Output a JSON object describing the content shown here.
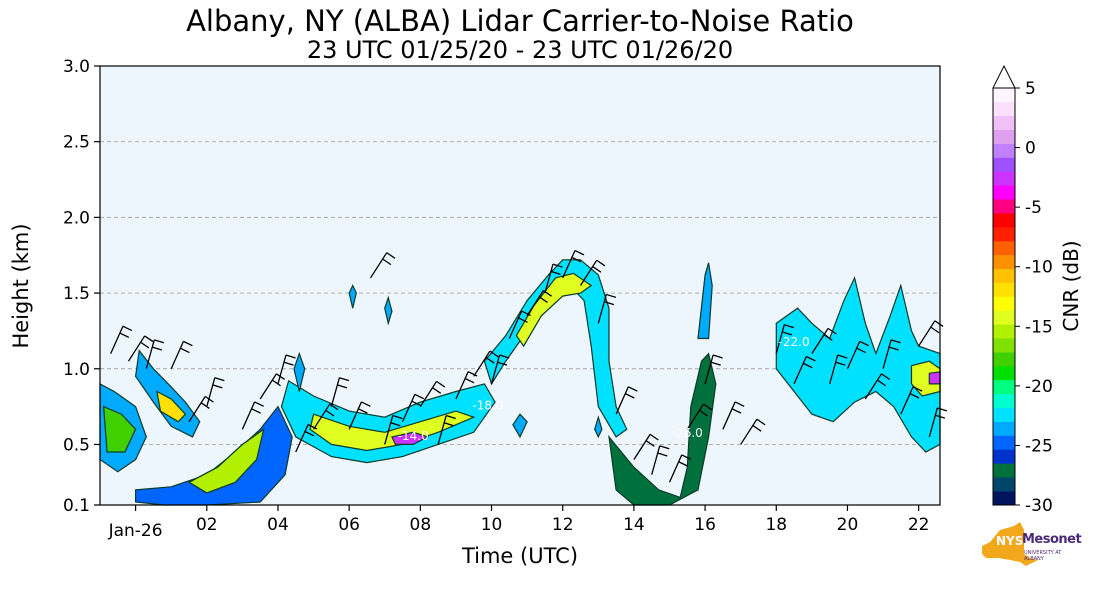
{
  "chart_data": {
    "type": "heatmap",
    "title": "Albany, NY (ALBA) Lidar Carrier-to-Noise Ratio",
    "subtitle": "23 UTC 01/25/20 - 23 UTC 01/26/20",
    "xlabel": "Time (UTC)",
    "ylabel": "Height (km)",
    "xlim": [
      23.0,
      46.6
    ],
    "ylim": [
      0.1,
      3.0
    ],
    "x_ticks": [
      {
        "value": 24,
        "label": "Jan-26"
      },
      {
        "value": 26,
        "label": "02"
      },
      {
        "value": 28,
        "label": "04"
      },
      {
        "value": 30,
        "label": "06"
      },
      {
        "value": 32,
        "label": "08"
      },
      {
        "value": 34,
        "label": "10"
      },
      {
        "value": 36,
        "label": "12"
      },
      {
        "value": 38,
        "label": "14"
      },
      {
        "value": 40,
        "label": "16"
      },
      {
        "value": 42,
        "label": "18"
      },
      {
        "value": 44,
        "label": "20"
      },
      {
        "value": 46,
        "label": "22"
      }
    ],
    "y_ticks": [
      {
        "value": 0.1,
        "label": "0.1"
      },
      {
        "value": 0.5,
        "label": "0.5"
      },
      {
        "value": 1.0,
        "label": "1.0"
      },
      {
        "value": 1.5,
        "label": "1.5"
      },
      {
        "value": 2.0,
        "label": "2.0"
      },
      {
        "value": 2.5,
        "label": "2.5"
      },
      {
        "value": 3.0,
        "label": "3.0"
      }
    ],
    "grid": "horizontal-dashed",
    "colorbar": {
      "label": "CNR (dB)",
      "min": -30,
      "max": 5,
      "extend": "max",
      "tick_values": [
        5,
        0,
        -5,
        -10,
        -15,
        -20,
        -25,
        -30
      ],
      "tick_labels": [
        "5",
        "0",
        "-5",
        "-10",
        "-15",
        "-20",
        "-25",
        "-30"
      ],
      "colors": [
        "#00155e",
        "#00456a",
        "#00703c",
        "#0033cc",
        "#0066ff",
        "#00aaff",
        "#00e0ff",
        "#00ffd0",
        "#00ff80",
        "#00e000",
        "#40d000",
        "#80e000",
        "#b0f000",
        "#e0ff20",
        "#ffff00",
        "#ffe000",
        "#ffc000",
        "#ff9000",
        "#ff6000",
        "#ff2000",
        "#ff0000",
        "#ff0080",
        "#ff00ff",
        "#cc33ff",
        "#a050ff",
        "#c080ff",
        "#e0a0f0",
        "#f0c0f8",
        "#fae0fc",
        "#fff4ff"
      ]
    },
    "contour_labels": [
      {
        "text": "-18.0",
        "x": 33.9,
        "y": 0.73
      },
      {
        "text": "-14.0",
        "x": 31.8,
        "y": 0.53
      },
      {
        "text": "-26.0",
        "x": 39.5,
        "y": 0.55
      },
      {
        "text": "-22.0",
        "x": 42.5,
        "y": 1.15
      }
    ],
    "series": [
      {
        "cnr_db": -24,
        "outline": [
          [
            23.0,
            0.9
          ],
          [
            23.4,
            0.85
          ],
          [
            24.0,
            0.75
          ],
          [
            24.3,
            0.55
          ],
          [
            24.0,
            0.4
          ],
          [
            23.5,
            0.32
          ],
          [
            23.0,
            0.4
          ]
        ]
      },
      {
        "cnr_db": -18,
        "outline": [
          [
            23.1,
            0.75
          ],
          [
            23.6,
            0.7
          ],
          [
            24.0,
            0.6
          ],
          [
            23.7,
            0.45
          ],
          [
            23.2,
            0.45
          ]
        ]
      },
      {
        "cnr_db": -24,
        "outline": [
          [
            24.1,
            1.12
          ],
          [
            24.5,
            1.0
          ],
          [
            25.0,
            0.88
          ],
          [
            25.4,
            0.78
          ],
          [
            25.8,
            0.65
          ],
          [
            25.6,
            0.55
          ],
          [
            25.0,
            0.62
          ],
          [
            24.5,
            0.78
          ],
          [
            24.0,
            0.95
          ]
        ]
      },
      {
        "cnr_db": -12,
        "outline": [
          [
            24.6,
            0.85
          ],
          [
            25.0,
            0.8
          ],
          [
            25.4,
            0.7
          ],
          [
            25.2,
            0.65
          ],
          [
            24.7,
            0.72
          ]
        ]
      },
      {
        "cnr_db": -25,
        "outline": [
          [
            24.0,
            0.2
          ],
          [
            25.0,
            0.22
          ],
          [
            26.0,
            0.3
          ],
          [
            26.8,
            0.45
          ],
          [
            27.5,
            0.6
          ],
          [
            28.0,
            0.75
          ],
          [
            28.4,
            0.55
          ],
          [
            28.2,
            0.3
          ],
          [
            27.5,
            0.12
          ],
          [
            26.0,
            0.1
          ],
          [
            24.8,
            0.1
          ],
          [
            24.0,
            0.12
          ]
        ]
      },
      {
        "cnr_db": -16,
        "outline": [
          [
            25.5,
            0.25
          ],
          [
            26.3,
            0.35
          ],
          [
            27.0,
            0.5
          ],
          [
            27.6,
            0.6
          ],
          [
            27.4,
            0.4
          ],
          [
            26.8,
            0.25
          ],
          [
            26.0,
            0.18
          ]
        ]
      },
      {
        "cnr_db": -23,
        "outline": [
          [
            28.3,
            0.92
          ],
          [
            29.0,
            0.82
          ],
          [
            30.0,
            0.72
          ],
          [
            31.0,
            0.68
          ],
          [
            32.0,
            0.78
          ],
          [
            33.0,
            0.85
          ],
          [
            33.8,
            0.9
          ],
          [
            34.1,
            0.78
          ],
          [
            33.5,
            0.58
          ],
          [
            32.5,
            0.5
          ],
          [
            31.5,
            0.42
          ],
          [
            30.5,
            0.38
          ],
          [
            29.5,
            0.42
          ],
          [
            28.5,
            0.55
          ],
          [
            28.1,
            0.75
          ]
        ]
      },
      {
        "cnr_db": -14,
        "outline": [
          [
            29.0,
            0.7
          ],
          [
            30.0,
            0.62
          ],
          [
            31.0,
            0.58
          ],
          [
            32.0,
            0.65
          ],
          [
            33.0,
            0.72
          ],
          [
            33.5,
            0.68
          ],
          [
            32.5,
            0.58
          ],
          [
            31.5,
            0.5
          ],
          [
            30.5,
            0.46
          ],
          [
            29.5,
            0.5
          ],
          [
            28.9,
            0.6
          ]
        ]
      },
      {
        "cnr_db": -3,
        "outline": [
          [
            31.2,
            0.55
          ],
          [
            31.8,
            0.58
          ],
          [
            32.2,
            0.55
          ],
          [
            31.8,
            0.5
          ],
          [
            31.3,
            0.5
          ]
        ]
      },
      {
        "cnr_db": -22,
        "outline": [
          [
            33.8,
            1.05
          ],
          [
            34.4,
            1.22
          ],
          [
            35.0,
            1.45
          ],
          [
            35.6,
            1.62
          ],
          [
            36.0,
            1.72
          ],
          [
            36.5,
            1.72
          ],
          [
            37.0,
            1.62
          ],
          [
            37.3,
            1.4
          ],
          [
            37.3,
            1.05
          ],
          [
            37.5,
            0.75
          ],
          [
            37.8,
            0.6
          ],
          [
            37.5,
            0.55
          ],
          [
            37.0,
            0.75
          ],
          [
            36.8,
            1.15
          ],
          [
            36.6,
            1.45
          ],
          [
            36.2,
            1.55
          ],
          [
            35.7,
            1.48
          ],
          [
            35.0,
            1.25
          ],
          [
            34.4,
            1.05
          ],
          [
            34.0,
            0.9
          ]
        ]
      },
      {
        "cnr_db": -14,
        "outline": [
          [
            34.7,
            1.22
          ],
          [
            35.2,
            1.42
          ],
          [
            35.8,
            1.6
          ],
          [
            36.3,
            1.63
          ],
          [
            36.8,
            1.55
          ],
          [
            36.5,
            1.5
          ],
          [
            36.0,
            1.48
          ],
          [
            35.4,
            1.35
          ],
          [
            34.9,
            1.15
          ]
        ]
      },
      {
        "cnr_db": -27,
        "outline": [
          [
            37.3,
            0.55
          ],
          [
            38.0,
            0.35
          ],
          [
            38.7,
            0.2
          ],
          [
            39.3,
            0.15
          ],
          [
            39.5,
            0.35
          ],
          [
            39.6,
            0.75
          ],
          [
            39.9,
            1.05
          ],
          [
            40.1,
            1.1
          ],
          [
            40.3,
            0.9
          ],
          [
            40.1,
            0.55
          ],
          [
            39.8,
            0.2
          ],
          [
            39.0,
            0.1
          ],
          [
            38.0,
            0.1
          ],
          [
            37.5,
            0.2
          ]
        ]
      },
      {
        "cnr_db": -24,
        "outline": [
          [
            39.8,
            1.2
          ],
          [
            40.0,
            1.62
          ],
          [
            40.1,
            1.7
          ],
          [
            40.2,
            1.55
          ],
          [
            40.1,
            1.2
          ]
        ]
      },
      {
        "cnr_db": -22,
        "outline": [
          [
            42.0,
            1.3
          ],
          [
            42.6,
            1.4
          ],
          [
            43.0,
            1.3
          ],
          [
            43.5,
            1.2
          ],
          [
            43.9,
            1.45
          ],
          [
            44.2,
            1.6
          ],
          [
            44.5,
            1.3
          ],
          [
            44.8,
            1.1
          ],
          [
            45.2,
            1.35
          ],
          [
            45.5,
            1.55
          ],
          [
            45.8,
            1.25
          ],
          [
            46.0,
            1.15
          ],
          [
            46.6,
            1.1
          ],
          [
            46.6,
            0.5
          ],
          [
            46.2,
            0.45
          ],
          [
            45.8,
            0.55
          ],
          [
            45.3,
            0.75
          ],
          [
            44.8,
            0.85
          ],
          [
            44.2,
            0.78
          ],
          [
            43.6,
            0.65
          ],
          [
            43.0,
            0.7
          ],
          [
            42.5,
            0.85
          ],
          [
            42.0,
            1.0
          ]
        ]
      },
      {
        "cnr_db": -14,
        "outline": [
          [
            45.8,
            1.02
          ],
          [
            46.3,
            1.05
          ],
          [
            46.6,
            1.0
          ],
          [
            46.6,
            0.85
          ],
          [
            46.1,
            0.82
          ],
          [
            45.8,
            0.9
          ]
        ]
      },
      {
        "cnr_db": -3,
        "outline": [
          [
            46.3,
            0.97
          ],
          [
            46.6,
            0.98
          ],
          [
            46.6,
            0.9
          ],
          [
            46.3,
            0.9
          ]
        ]
      },
      {
        "cnr_db": -24,
        "outline": [
          [
            28.6,
            1.1
          ],
          [
            28.75,
            1.0
          ],
          [
            28.6,
            0.85
          ],
          [
            28.45,
            1.0
          ]
        ]
      },
      {
        "cnr_db": -24,
        "outline": [
          [
            30.1,
            1.55
          ],
          [
            30.2,
            1.5
          ],
          [
            30.1,
            1.4
          ],
          [
            30.0,
            1.5
          ]
        ]
      },
      {
        "cnr_db": -24,
        "outline": [
          [
            31.1,
            1.47
          ],
          [
            31.2,
            1.38
          ],
          [
            31.1,
            1.3
          ],
          [
            31.0,
            1.4
          ]
        ]
      },
      {
        "cnr_db": -24,
        "outline": [
          [
            34.8,
            0.7
          ],
          [
            35.0,
            0.65
          ],
          [
            34.8,
            0.55
          ],
          [
            34.6,
            0.63
          ]
        ]
      },
      {
        "cnr_db": -24,
        "outline": [
          [
            37.0,
            0.68
          ],
          [
            37.1,
            0.6
          ],
          [
            37.0,
            0.55
          ],
          [
            36.9,
            0.6
          ]
        ]
      }
    ],
    "wind_barbs": [
      {
        "time": 23.3,
        "height": 1.1
      },
      {
        "time": 23.8,
        "height": 1.05
      },
      {
        "time": 24.3,
        "height": 1.0
      },
      {
        "time": 25.0,
        "height": 1.0
      },
      {
        "time": 25.5,
        "height": 0.65
      },
      {
        "time": 26.0,
        "height": 0.75
      },
      {
        "time": 27.0,
        "height": 0.6
      },
      {
        "time": 27.5,
        "height": 0.8
      },
      {
        "time": 28.0,
        "height": 0.9
      },
      {
        "time": 28.5,
        "height": 0.45
      },
      {
        "time": 29.0,
        "height": 0.6
      },
      {
        "time": 29.5,
        "height": 0.75
      },
      {
        "time": 30.0,
        "height": 0.6
      },
      {
        "time": 30.6,
        "height": 1.6
      },
      {
        "time": 31.0,
        "height": 0.5
      },
      {
        "time": 31.5,
        "height": 0.65
      },
      {
        "time": 32.0,
        "height": 0.75
      },
      {
        "time": 32.5,
        "height": 0.5
      },
      {
        "time": 33.0,
        "height": 0.8
      },
      {
        "time": 33.5,
        "height": 0.95
      },
      {
        "time": 34.0,
        "height": 0.9
      },
      {
        "time": 34.5,
        "height": 1.2
      },
      {
        "time": 35.0,
        "height": 1.35
      },
      {
        "time": 35.5,
        "height": 1.5
      },
      {
        "time": 36.0,
        "height": 1.6
      },
      {
        "time": 36.5,
        "height": 1.55
      },
      {
        "time": 37.0,
        "height": 1.3
      },
      {
        "time": 37.5,
        "height": 0.7
      },
      {
        "time": 38.0,
        "height": 0.4
      },
      {
        "time": 38.5,
        "height": 0.3
      },
      {
        "time": 39.0,
        "height": 0.25
      },
      {
        "time": 39.5,
        "height": 0.6
      },
      {
        "time": 40.0,
        "height": 0.9
      },
      {
        "time": 40.5,
        "height": 0.6
      },
      {
        "time": 41.0,
        "height": 0.5
      },
      {
        "time": 42.0,
        "height": 1.1
      },
      {
        "time": 42.5,
        "height": 0.9
      },
      {
        "time": 43.0,
        "height": 1.1
      },
      {
        "time": 43.5,
        "height": 0.9
      },
      {
        "time": 44.0,
        "height": 1.0
      },
      {
        "time": 44.5,
        "height": 0.8
      },
      {
        "time": 45.0,
        "height": 1.0
      },
      {
        "time": 45.5,
        "height": 0.7
      },
      {
        "time": 46.0,
        "height": 1.15
      },
      {
        "time": 46.3,
        "height": 0.55
      }
    ]
  },
  "logo": {
    "name": "NYS Mesonet",
    "nys": "NYS",
    "mesonet": "Mesonet",
    "university": "UNIVERSITY AT ALBANY"
  }
}
